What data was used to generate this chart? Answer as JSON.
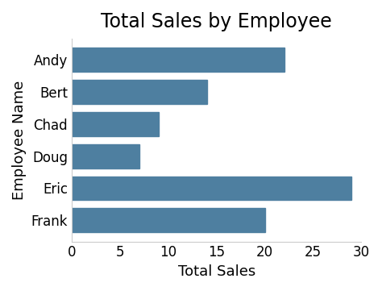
{
  "title": "Total Sales by Employee",
  "xlabel": "Total Sales",
  "ylabel": "Employee Name",
  "employees": [
    "Andy",
    "Bert",
    "Chad",
    "Doug",
    "Eric",
    "Frank"
  ],
  "sales": [
    22,
    14,
    9,
    7,
    29,
    20
  ],
  "bar_color": "#4e7fa0",
  "xlim": [
    0,
    30
  ],
  "xticks": [
    0,
    5,
    10,
    15,
    20,
    25,
    30
  ],
  "title_fontsize": 17,
  "axis_label_fontsize": 13,
  "tick_fontsize": 12,
  "background_color": "#ffffff",
  "bar_height": 0.75
}
